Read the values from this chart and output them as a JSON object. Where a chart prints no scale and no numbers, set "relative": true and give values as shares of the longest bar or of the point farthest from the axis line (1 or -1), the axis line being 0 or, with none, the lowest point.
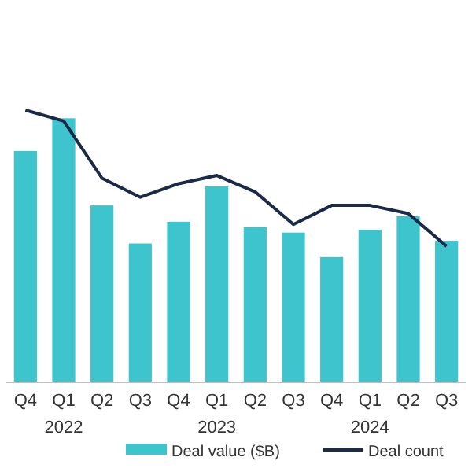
{
  "chart_data": {
    "type": "bar",
    "relative": true,
    "categories": [
      "Q4",
      "Q1",
      "Q2",
      "Q3",
      "Q4",
      "Q1",
      "Q2",
      "Q3",
      "Q4",
      "Q1",
      "Q2",
      "Q3"
    ],
    "series": [
      {
        "name": "Deal value ($B)",
        "color": "#3ec4cc",
        "values": [
          0.85,
          0.97,
          0.65,
          0.51,
          0.59,
          0.72,
          0.57,
          0.55,
          0.46,
          0.56,
          0.61,
          0.52
        ]
      },
      {
        "name": "Deal count",
        "type": "line",
        "color": "#1b2a47",
        "values": [
          1,
          0.96,
          0.75,
          0.68,
          0.73,
          0.76,
          0.7,
          0.58,
          0.65,
          0.65,
          0.62,
          0.5
        ]
      }
    ],
    "annotations": [
      "2022",
      "2023",
      "2024"
    ],
    "legend": "bottom",
    "marker": "none",
    "line_style": "solid"
  }
}
